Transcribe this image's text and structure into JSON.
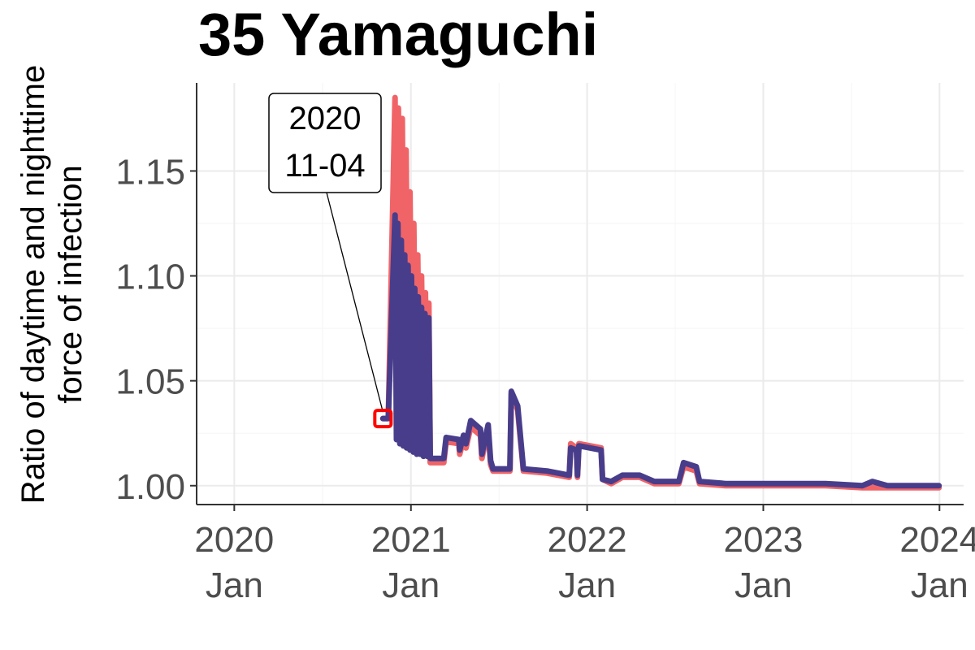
{
  "chart_data": {
    "type": "line",
    "title": "35 Yamaguchi",
    "ylabel_lines": [
      "Ratio of daytime and nighttime",
      "force of infection"
    ],
    "xlabel": "",
    "x_ticks": [
      {
        "date": "2020-01-01",
        "year": "2020",
        "month": "Jan"
      },
      {
        "date": "2021-01-01",
        "year": "2021",
        "month": "Jan"
      },
      {
        "date": "2022-01-01",
        "year": "2022",
        "month": "Jan"
      },
      {
        "date": "2023-01-01",
        "year": "2023",
        "month": "Jan"
      },
      {
        "date": "2024-01-01",
        "year": "2024",
        "month": "Jan"
      }
    ],
    "y_ticks": [
      "1.00",
      "1.05",
      "1.10",
      "1.15"
    ],
    "xlim": [
      "2019-10-15",
      "2024-02-20"
    ],
    "ylim": [
      0.991,
      1.192
    ],
    "grid": true,
    "annotation": {
      "lines": [
        "2020",
        "11-04"
      ],
      "date": "2020-11-04",
      "value": 1.032
    },
    "series": [
      {
        "color": "#f06468",
        "points": [
          [
            "2020-11-04",
            1.032
          ],
          [
            "2020-11-15",
            1.032
          ],
          [
            "2020-11-29",
            1.185
          ],
          [
            "2020-12-03",
            1.03
          ],
          [
            "2020-12-06",
            1.18
          ],
          [
            "2020-12-11",
            1.026
          ],
          [
            "2020-12-14",
            1.175
          ],
          [
            "2020-12-19",
            1.024
          ],
          [
            "2020-12-22",
            1.16
          ],
          [
            "2020-12-27",
            1.021
          ],
          [
            "2020-12-30",
            1.14
          ],
          [
            "2021-01-04",
            1.018
          ],
          [
            "2021-01-07",
            1.125
          ],
          [
            "2021-01-12",
            1.017
          ],
          [
            "2021-01-15",
            1.11
          ],
          [
            "2021-01-20",
            1.016
          ],
          [
            "2021-01-23",
            1.1
          ],
          [
            "2021-01-28",
            1.015
          ],
          [
            "2021-01-31",
            1.092
          ],
          [
            "2021-02-04",
            1.014
          ],
          [
            "2021-02-07",
            1.087
          ],
          [
            "2021-02-10",
            1.011
          ],
          [
            "2021-03-10",
            1.011
          ],
          [
            "2021-03-15",
            1.021
          ],
          [
            "2021-04-10",
            1.02
          ],
          [
            "2021-04-12",
            1.015
          ],
          [
            "2021-04-20",
            1.022
          ],
          [
            "2021-04-25",
            1.018
          ],
          [
            "2021-05-05",
            1.028
          ],
          [
            "2021-05-25",
            1.024
          ],
          [
            "2021-05-28",
            1.013
          ],
          [
            "2021-06-10",
            1.027
          ],
          [
            "2021-06-15",
            1.01
          ],
          [
            "2021-06-20",
            1.007
          ],
          [
            "2021-07-25",
            1.007
          ],
          [
            "2021-07-28",
            1.044
          ],
          [
            "2021-08-10",
            1.036
          ],
          [
            "2021-08-22",
            1.007
          ],
          [
            "2021-10-10",
            1.006
          ],
          [
            "2021-11-25",
            1.004
          ],
          [
            "2021-11-28",
            1.02
          ],
          [
            "2021-12-10",
            1.018
          ],
          [
            "2021-12-12",
            1.004
          ],
          [
            "2021-12-15",
            1.02
          ],
          [
            "2022-01-30",
            1.018
          ],
          [
            "2022-02-02",
            1.003
          ],
          [
            "2022-02-20",
            1.001
          ],
          [
            "2022-03-15",
            1.004
          ],
          [
            "2022-04-20",
            1.004
          ],
          [
            "2022-05-20",
            1.001
          ],
          [
            "2022-07-10",
            1.001
          ],
          [
            "2022-07-20",
            1.009
          ],
          [
            "2022-08-15",
            1.007
          ],
          [
            "2022-08-22",
            1.001
          ],
          [
            "2022-10-15",
            1.0
          ],
          [
            "2022-12-20",
            1.0
          ],
          [
            "2023-03-01",
            1.0
          ],
          [
            "2023-05-10",
            1.0
          ],
          [
            "2023-07-25",
            0.999
          ],
          [
            "2023-08-15",
            0.999
          ],
          [
            "2023-09-15",
            0.999
          ],
          [
            "2023-12-31",
            0.999
          ]
        ]
      },
      {
        "color": "#483d8b",
        "points": [
          [
            "2020-11-04",
            1.032
          ],
          [
            "2020-11-15",
            1.032
          ],
          [
            "2020-11-29",
            1.129
          ],
          [
            "2020-12-02",
            1.022
          ],
          [
            "2020-12-05",
            1.125
          ],
          [
            "2020-12-09",
            1.02
          ],
          [
            "2020-12-12",
            1.117
          ],
          [
            "2020-12-16",
            1.019
          ],
          [
            "2020-12-19",
            1.11
          ],
          [
            "2020-12-23",
            1.018
          ],
          [
            "2020-12-26",
            1.105
          ],
          [
            "2020-12-30",
            1.017
          ],
          [
            "2021-01-02",
            1.1
          ],
          [
            "2021-01-06",
            1.016
          ],
          [
            "2021-01-09",
            1.094
          ],
          [
            "2021-01-13",
            1.015
          ],
          [
            "2021-01-16",
            1.09
          ],
          [
            "2021-01-20",
            1.015
          ],
          [
            "2021-01-23",
            1.085
          ],
          [
            "2021-01-27",
            1.014
          ],
          [
            "2021-01-30",
            1.082
          ],
          [
            "2021-02-04",
            1.014
          ],
          [
            "2021-02-07",
            1.08
          ],
          [
            "2021-02-10",
            1.013
          ],
          [
            "2021-03-10",
            1.013
          ],
          [
            "2021-03-15",
            1.023
          ],
          [
            "2021-04-10",
            1.022
          ],
          [
            "2021-04-12",
            1.017
          ],
          [
            "2021-04-20",
            1.024
          ],
          [
            "2021-04-25",
            1.02
          ],
          [
            "2021-05-05",
            1.031
          ],
          [
            "2021-05-25",
            1.027
          ],
          [
            "2021-05-28",
            1.015
          ],
          [
            "2021-06-10",
            1.029
          ],
          [
            "2021-06-15",
            1.012
          ],
          [
            "2021-06-20",
            1.008
          ],
          [
            "2021-07-25",
            1.008
          ],
          [
            "2021-07-28",
            1.045
          ],
          [
            "2021-08-10",
            1.038
          ],
          [
            "2021-08-22",
            1.008
          ],
          [
            "2021-10-10",
            1.007
          ],
          [
            "2021-11-25",
            1.005
          ],
          [
            "2021-11-28",
            1.018
          ],
          [
            "2021-12-10",
            1.017
          ],
          [
            "2021-12-12",
            1.005
          ],
          [
            "2021-12-15",
            1.019
          ],
          [
            "2022-01-30",
            1.017
          ],
          [
            "2022-02-02",
            1.003
          ],
          [
            "2022-02-20",
            1.002
          ],
          [
            "2022-03-15",
            1.005
          ],
          [
            "2022-04-20",
            1.005
          ],
          [
            "2022-05-20",
            1.002
          ],
          [
            "2022-07-10",
            1.002
          ],
          [
            "2022-07-20",
            1.011
          ],
          [
            "2022-08-15",
            1.009
          ],
          [
            "2022-08-22",
            1.002
          ],
          [
            "2022-10-15",
            1.001
          ],
          [
            "2022-12-20",
            1.001
          ],
          [
            "2023-03-01",
            1.001
          ],
          [
            "2023-05-10",
            1.001
          ],
          [
            "2023-07-25",
            1.0
          ],
          [
            "2023-08-15",
            1.002
          ],
          [
            "2023-09-15",
            1.0
          ],
          [
            "2023-12-31",
            1.0
          ]
        ]
      }
    ]
  }
}
